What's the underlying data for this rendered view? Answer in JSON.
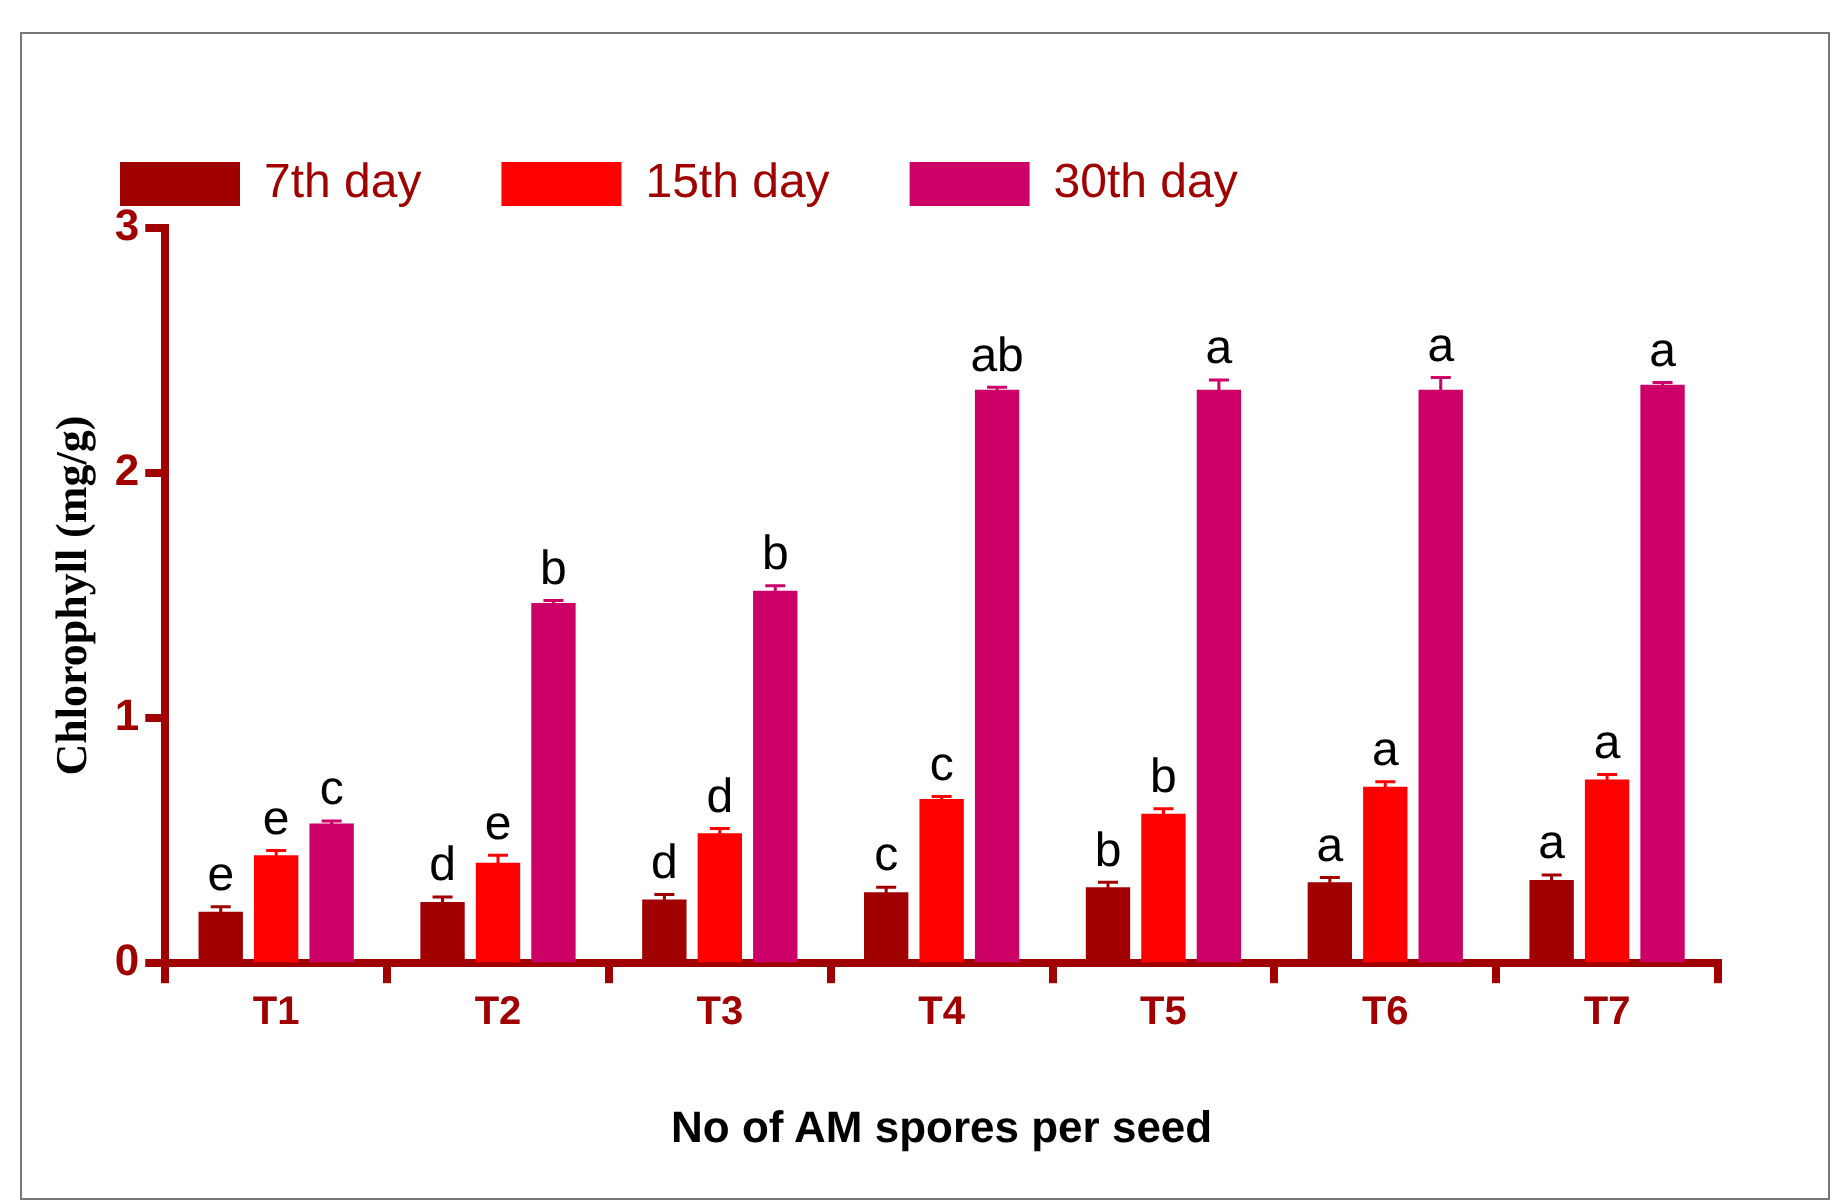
{
  "chart_data": {
    "type": "bar",
    "xlabel": "No of AM spores per seed",
    "ylabel": "Chlorophyll (mg/g)",
    "categories": [
      "T1",
      "T2",
      "T3",
      "T4",
      "T5",
      "T6",
      "T7"
    ],
    "series": [
      {
        "name": "7th day",
        "color": "#a00000",
        "values": [
          0.21,
          0.25,
          0.26,
          0.29,
          0.31,
          0.33,
          0.34
        ],
        "errors": [
          0.02,
          0.02,
          0.02,
          0.02,
          0.02,
          0.02,
          0.02
        ],
        "value_labels": [
          "e",
          "d",
          "d",
          "c",
          "b",
          "a",
          "a"
        ]
      },
      {
        "name": "15th day",
        "color": "#ff0000",
        "values": [
          0.44,
          0.41,
          0.53,
          0.67,
          0.61,
          0.72,
          0.75
        ],
        "errors": [
          0.02,
          0.03,
          0.02,
          0.01,
          0.02,
          0.02,
          0.02
        ],
        "value_labels": [
          "e",
          "e",
          "d",
          "c",
          "b",
          "a",
          "a"
        ]
      },
      {
        "name": "30th day",
        "color": "#cc0066",
        "values": [
          0.57,
          1.47,
          1.52,
          2.34,
          2.34,
          2.34,
          2.36
        ],
        "errors": [
          0.01,
          0.01,
          0.02,
          0.01,
          0.04,
          0.05,
          0.01
        ],
        "value_labels": [
          "c",
          "b",
          "b",
          "ab",
          "a",
          "a",
          "a"
        ]
      }
    ],
    "ylim": [
      0,
      3
    ],
    "yticks": [
      0,
      1,
      2,
      3
    ],
    "grid": false,
    "legend": "top"
  }
}
